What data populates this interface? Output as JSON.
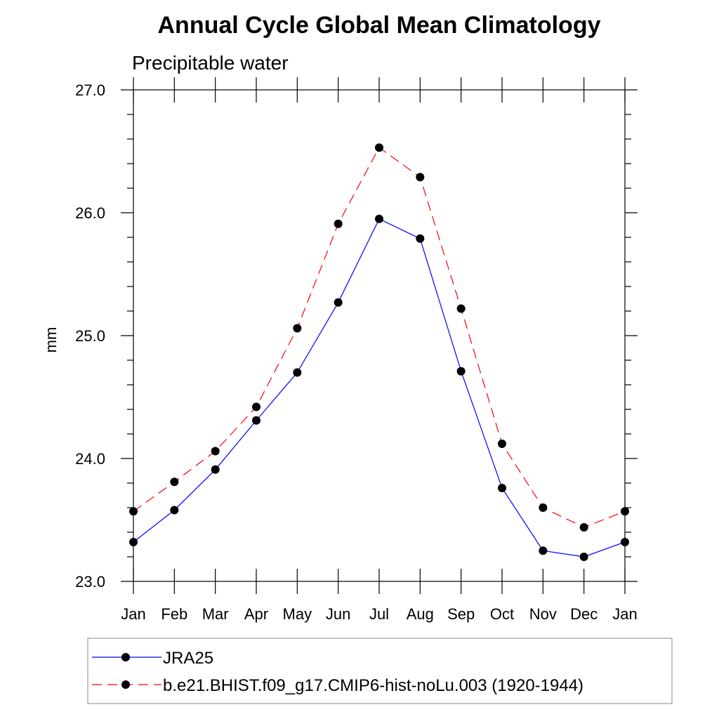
{
  "chart_data": {
    "type": "line",
    "title": "Annual Cycle Global Mean Climatology",
    "subtitle": "Precipitable water",
    "ylabel": "mm",
    "xlabel": "",
    "categories": [
      "Jan",
      "Feb",
      "Mar",
      "Apr",
      "May",
      "Jun",
      "Jul",
      "Aug",
      "Sep",
      "Oct",
      "Nov",
      "Dec",
      "Jan"
    ],
    "ylim": [
      23.0,
      27.0
    ],
    "yticks": [
      "23.0",
      "24.0",
      "25.0",
      "26.0",
      "27.0"
    ],
    "grid": false,
    "legend_position": "bottom",
    "series": [
      {
        "name": "JRA25",
        "color": "#0000ff",
        "linestyle": "solid",
        "marker": "circle",
        "values": [
          23.32,
          23.58,
          23.91,
          24.31,
          24.7,
          25.27,
          25.95,
          25.79,
          24.71,
          23.76,
          23.25,
          23.2,
          23.32
        ]
      },
      {
        "name": "b.e21.BHIST.f09_g17.CMIP6-hist-noLu.003 (1920-1944)",
        "color": "#ff0000",
        "linestyle": "dashed",
        "marker": "circle",
        "values": [
          23.57,
          23.81,
          24.06,
          24.42,
          25.06,
          25.91,
          26.53,
          26.29,
          25.22,
          24.12,
          23.6,
          23.44,
          23.57
        ]
      }
    ]
  }
}
